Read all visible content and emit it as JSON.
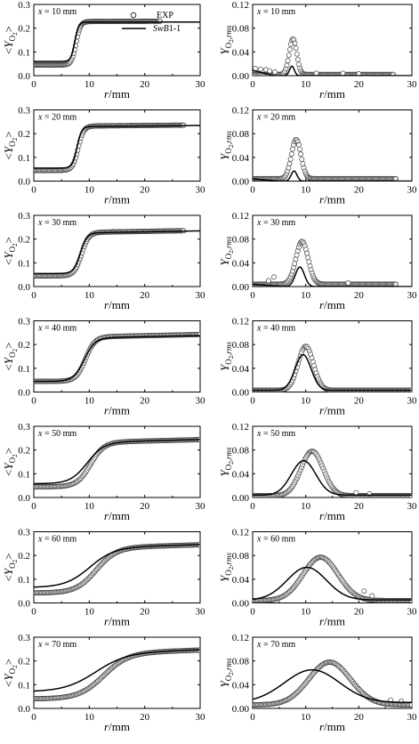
{
  "figure": {
    "left_ylabel": "<Y",
    "left_ylabel_sub": "O",
    "left_ylabel_sub2": "2",
    "left_ylabel_close": ">",
    "right_ylabel": "Y",
    "right_ylabel_sub": "O",
    "right_ylabel_sub2": "2",
    "right_ylabel_suffix": ",rms",
    "xlabel": "r",
    "xlabel_unit": "/mm",
    "legend_exp": "EXP",
    "legend_model": "SwB1-1"
  },
  "chart_data": [
    {
      "type": "scatter",
      "label": "x = 10 mm",
      "xlim": [
        0,
        30
      ],
      "ylim": [
        0,
        0.3
      ],
      "xticks": [
        "0",
        "10",
        "20",
        "30"
      ],
      "yticks": [
        "0.0",
        "0.1",
        "0.2",
        "0.3"
      ],
      "exp": {
        "kind": "sigmoid",
        "low": 0.045,
        "high": 0.228,
        "center": 7.6,
        "width": 0.4,
        "slope_high": 0.0001,
        "x": [
          0.2,
          22.8
        ]
      },
      "model": {
        "kind": "sigmoid",
        "low": 0.06,
        "high": 0.226,
        "center": 7.4,
        "width": 0.35,
        "slope_high": 0.0,
        "x": [
          0,
          30
        ]
      },
      "legend": true
    },
    {
      "type": "scatter",
      "label": "x = 10 mm",
      "xlim": [
        0,
        30
      ],
      "ylim": [
        0,
        0.12
      ],
      "xticks": [
        "0",
        "10",
        "20",
        "30"
      ],
      "yticks": [
        "0.00",
        "0.04",
        "0.08",
        "0.12"
      ],
      "exp": {
        "kind": "gauss",
        "base": 0.002,
        "peak": 0.06,
        "center": 7.6,
        "sigma": 0.7,
        "x": [
          0.2,
          26.5
        ],
        "noise": [
          [
            0.5,
            0.012
          ],
          [
            1.5,
            0.011
          ],
          [
            2.5,
            0.01
          ],
          [
            3.2,
            0.008
          ],
          [
            4.2,
            0.006
          ],
          [
            12,
            0.004
          ],
          [
            17,
            0.004
          ],
          [
            20,
            0.003
          ]
        ]
      },
      "model": {
        "kind": "gauss",
        "base": 0.0,
        "peak": 0.016,
        "center": 7.4,
        "sigma": 0.45,
        "x": [
          0,
          30
        ],
        "left_base": 0.009,
        "left_until": 4
      }
    },
    {
      "type": "scatter",
      "label": "x = 20 mm",
      "xlim": [
        0,
        30
      ],
      "ylim": [
        0,
        0.3
      ],
      "xticks": [
        "0",
        "10",
        "20",
        "30"
      ],
      "yticks": [
        "0.0",
        "0.1",
        "0.2",
        "0.3"
      ],
      "exp": {
        "kind": "sigmoid",
        "low": 0.045,
        "high": 0.232,
        "center": 8.0,
        "width": 0.5,
        "slope_high": 0.0002,
        "x": [
          0.2,
          27
        ]
      },
      "model": {
        "kind": "sigmoid",
        "low": 0.055,
        "high": 0.23,
        "center": 7.8,
        "width": 0.42,
        "slope_high": 0.0002,
        "x": [
          0,
          30
        ]
      }
    },
    {
      "type": "scatter",
      "label": "x = 20 mm",
      "xlim": [
        0,
        30
      ],
      "ylim": [
        0,
        0.12
      ],
      "xticks": [
        "0",
        "10",
        "20",
        "30"
      ],
      "yticks": [
        "0.00",
        "0.04",
        "0.08",
        "0.12"
      ],
      "exp": {
        "kind": "gauss",
        "base": 0.004,
        "peak": 0.066,
        "center": 8.2,
        "sigma": 0.9,
        "x": [
          0.2,
          27
        ],
        "noise": []
      },
      "model": {
        "kind": "gauss",
        "base": 0.0,
        "peak": 0.017,
        "center": 7.8,
        "sigma": 0.55,
        "x": [
          0,
          30
        ],
        "left_base": 0.004,
        "left_until": 5
      }
    },
    {
      "type": "scatter",
      "label": "x = 30 mm",
      "xlim": [
        0,
        30
      ],
      "ylim": [
        0,
        0.3
      ],
      "xticks": [
        "0",
        "10",
        "20",
        "30"
      ],
      "yticks": [
        "0.0",
        "0.1",
        "0.2",
        "0.3"
      ],
      "exp": {
        "kind": "sigmoid",
        "low": 0.045,
        "high": 0.228,
        "center": 8.6,
        "width": 0.65,
        "slope_high": 0.0004,
        "x": [
          0.2,
          27
        ]
      },
      "model": {
        "kind": "sigmoid",
        "low": 0.055,
        "high": 0.226,
        "center": 8.4,
        "width": 0.6,
        "slope_high": 0.0004,
        "x": [
          0,
          30
        ]
      }
    },
    {
      "type": "scatter",
      "label": "x = 30 mm",
      "xlim": [
        0,
        30
      ],
      "ylim": [
        0,
        0.12
      ],
      "xticks": [
        "0",
        "10",
        "20",
        "30"
      ],
      "yticks": [
        "0.00",
        "0.04",
        "0.08",
        "0.12"
      ],
      "exp": {
        "kind": "gauss",
        "base": 0.004,
        "peak": 0.072,
        "center": 9.3,
        "sigma": 1.15,
        "x": [
          0.2,
          27
        ],
        "noise": [
          [
            3.0,
            0.01
          ],
          [
            4.0,
            0.016
          ],
          [
            18,
            0.006
          ]
        ]
      },
      "model": {
        "kind": "gauss",
        "base": 0.0,
        "peak": 0.033,
        "center": 8.9,
        "sigma": 0.85,
        "x": [
          0,
          30
        ],
        "left_base": 0.004,
        "left_until": 6
      }
    },
    {
      "type": "scatter",
      "label": "x = 40 mm",
      "xlim": [
        0,
        30
      ],
      "ylim": [
        0,
        0.3
      ],
      "xticks": [
        "0",
        "10",
        "20",
        "30"
      ],
      "yticks": [
        "0.0",
        "0.1",
        "0.2",
        "0.3"
      ],
      "exp": {
        "kind": "sigmoid",
        "low": 0.045,
        "high": 0.232,
        "center": 9.3,
        "width": 0.85,
        "slope_high": 0.0005,
        "x": [
          0.2,
          30
        ]
      },
      "model": {
        "kind": "sigmoid",
        "low": 0.045,
        "high": 0.228,
        "center": 9.1,
        "width": 0.95,
        "slope_high": 0.0005,
        "x": [
          0,
          30
        ]
      }
    },
    {
      "type": "scatter",
      "label": "x = 40 mm",
      "xlim": [
        0,
        30
      ],
      "ylim": [
        0,
        0.12
      ],
      "xticks": [
        "0",
        "10",
        "20",
        "30"
      ],
      "yticks": [
        "0.00",
        "0.04",
        "0.08",
        "0.12"
      ],
      "exp": {
        "kind": "gauss",
        "base": 0.003,
        "peak": 0.074,
        "center": 10.0,
        "sigma": 1.45,
        "x": [
          0.2,
          30
        ],
        "noise": []
      },
      "model": {
        "kind": "gauss",
        "base": 0.003,
        "peak": 0.06,
        "center": 9.5,
        "sigma": 1.5,
        "x": [
          0,
          30
        ]
      }
    },
    {
      "type": "scatter",
      "label": "x = 50 mm",
      "xlim": [
        0,
        30
      ],
      "ylim": [
        0,
        0.3
      ],
      "xticks": [
        "0",
        "10",
        "20",
        "30"
      ],
      "yticks": [
        "0.0",
        "0.1",
        "0.2",
        "0.3"
      ],
      "exp": {
        "kind": "sigmoid",
        "low": 0.045,
        "high": 0.232,
        "center": 10.2,
        "width": 1.2,
        "slope_high": 0.0006,
        "x": [
          0.2,
          30
        ]
      },
      "model": {
        "kind": "sigmoid",
        "low": 0.058,
        "high": 0.232,
        "center": 9.6,
        "width": 1.5,
        "slope_high": 0.0006,
        "x": [
          0,
          30
        ]
      }
    },
    {
      "type": "scatter",
      "label": "x = 50 mm",
      "xlim": [
        0,
        30
      ],
      "ylim": [
        0,
        0.12
      ],
      "xticks": [
        "0",
        "10",
        "20",
        "30"
      ],
      "yticks": [
        "0.00",
        "0.04",
        "0.08",
        "0.12"
      ],
      "exp": {
        "kind": "gauss",
        "base": 0.003,
        "peak": 0.075,
        "center": 11.2,
        "sigma": 2.1,
        "x": [
          0.2,
          30
        ],
        "noise": [
          [
            19.5,
            0.008
          ],
          [
            22,
            0.006
          ]
        ]
      },
      "model": {
        "kind": "gauss",
        "base": 0.004,
        "peak": 0.058,
        "center": 9.6,
        "sigma": 2.3,
        "x": [
          0,
          30
        ]
      }
    },
    {
      "type": "scatter",
      "label": "x = 60 mm",
      "xlim": [
        0,
        30
      ],
      "ylim": [
        0,
        0.3
      ],
      "xticks": [
        "0",
        "10",
        "20",
        "30"
      ],
      "yticks": [
        "0.0",
        "0.1",
        "0.2",
        "0.3"
      ],
      "exp": {
        "kind": "sigmoid",
        "low": 0.042,
        "high": 0.232,
        "center": 11.2,
        "width": 1.8,
        "slope_high": 0.0007,
        "x": [
          0.2,
          30
        ]
      },
      "model": {
        "kind": "sigmoid",
        "low": 0.065,
        "high": 0.232,
        "center": 10.0,
        "width": 2.2,
        "slope_high": 0.0007,
        "x": [
          0,
          30
        ]
      }
    },
    {
      "type": "scatter",
      "label": "x = 60 mm",
      "xlim": [
        0,
        30
      ],
      "ylim": [
        0,
        0.12
      ],
      "xticks": [
        "0",
        "10",
        "20",
        "30"
      ],
      "yticks": [
        "0.00",
        "0.04",
        "0.08",
        "0.12"
      ],
      "exp": {
        "kind": "gauss",
        "base": 0.004,
        "peak": 0.073,
        "center": 12.8,
        "sigma": 3.3,
        "x": [
          0.2,
          30
        ],
        "noise": [
          [
            21,
            0.02
          ],
          [
            22.5,
            0.012
          ]
        ]
      },
      "model": {
        "kind": "gauss",
        "base": 0.005,
        "peak": 0.055,
        "center": 10.2,
        "sigma": 3.7,
        "x": [
          0,
          30
        ]
      }
    },
    {
      "type": "scatter",
      "label": "x = 70 mm",
      "xlim": [
        0,
        30
      ],
      "ylim": [
        0,
        0.3
      ],
      "xticks": [
        "0",
        "10",
        "20",
        "30"
      ],
      "yticks": [
        "0.0",
        "0.1",
        "0.2",
        "0.3"
      ],
      "exp": {
        "kind": "sigmoid",
        "low": 0.04,
        "high": 0.232,
        "center": 12.5,
        "width": 2.2,
        "slope_high": 0.0008,
        "x": [
          0.2,
          30
        ]
      },
      "model": {
        "kind": "sigmoid",
        "low": 0.07,
        "high": 0.232,
        "center": 11.0,
        "width": 2.8,
        "slope_high": 0.0008,
        "x": [
          0,
          30
        ]
      }
    },
    {
      "type": "scatter",
      "label": "x = 70 mm",
      "xlim": [
        0,
        30
      ],
      "ylim": [
        0,
        0.12
      ],
      "xticks": [
        "0",
        "10",
        "20",
        "30"
      ],
      "yticks": [
        "0.00",
        "0.04",
        "0.08",
        "0.12"
      ],
      "exp": {
        "kind": "gauss",
        "base": 0.006,
        "peak": 0.072,
        "center": 14.5,
        "sigma": 3.9,
        "x": [
          0.2,
          30
        ],
        "noise": [
          [
            26,
            0.014
          ],
          [
            28,
            0.012
          ]
        ]
      },
      "model": {
        "kind": "gauss",
        "base": 0.01,
        "peak": 0.055,
        "center": 11.2,
        "sigma": 5.2,
        "x": [
          0,
          30
        ]
      }
    }
  ]
}
